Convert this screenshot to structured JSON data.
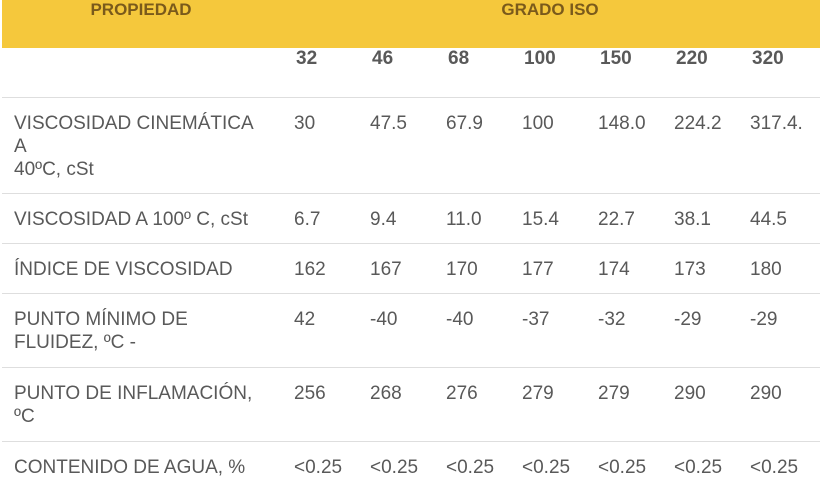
{
  "table": {
    "header": {
      "property_label": "PROPIEDAD",
      "grade_label": "GRADO ISO"
    },
    "grades": [
      "32",
      "46",
      "68",
      "100",
      "150",
      "220",
      "320"
    ],
    "rows": [
      {
        "name_lines": [
          "VISCOSIDAD CINEMÁTICA",
          "A",
          "40ºC, cSt"
        ],
        "values": [
          "30",
          "47.5",
          "67.9",
          "100",
          "148.0",
          "224.2",
          "317.4."
        ]
      },
      {
        "name_lines": [
          "VISCOSIDAD A 100º C, cSt"
        ],
        "values": [
          "6.7",
          "9.4",
          "11.0",
          "15.4",
          "22.7",
          "38.1",
          "44.5"
        ]
      },
      {
        "name_lines": [
          "ÍNDICE DE VISCOSIDAD"
        ],
        "values": [
          "162",
          "167",
          "170",
          "177",
          "174",
          "173",
          "180"
        ]
      },
      {
        "name_lines": [
          "PUNTO MÍNIMO DE",
          "FLUIDEZ, ºC -"
        ],
        "values": [
          "42",
          "-40",
          "-40",
          "-37",
          "-32",
          "-29",
          "-29"
        ]
      },
      {
        "name_lines": [
          "PUNTO DE INFLAMACIÓN,",
          "ºC"
        ],
        "values": [
          "256",
          "268",
          "276",
          "279",
          "279",
          "290",
          "290"
        ]
      },
      {
        "name_lines": [
          "CONTENIDO DE AGUA, %"
        ],
        "values": [
          "<0.25",
          "<0.25",
          "<0.25",
          "<0.25",
          "<0.25",
          "<0.25",
          "<0.25"
        ]
      }
    ]
  },
  "colors": {
    "header_bg": "#f5c83c",
    "header_text": "#7a5a1b",
    "body_text": "#595959",
    "divider": "#dedede"
  }
}
